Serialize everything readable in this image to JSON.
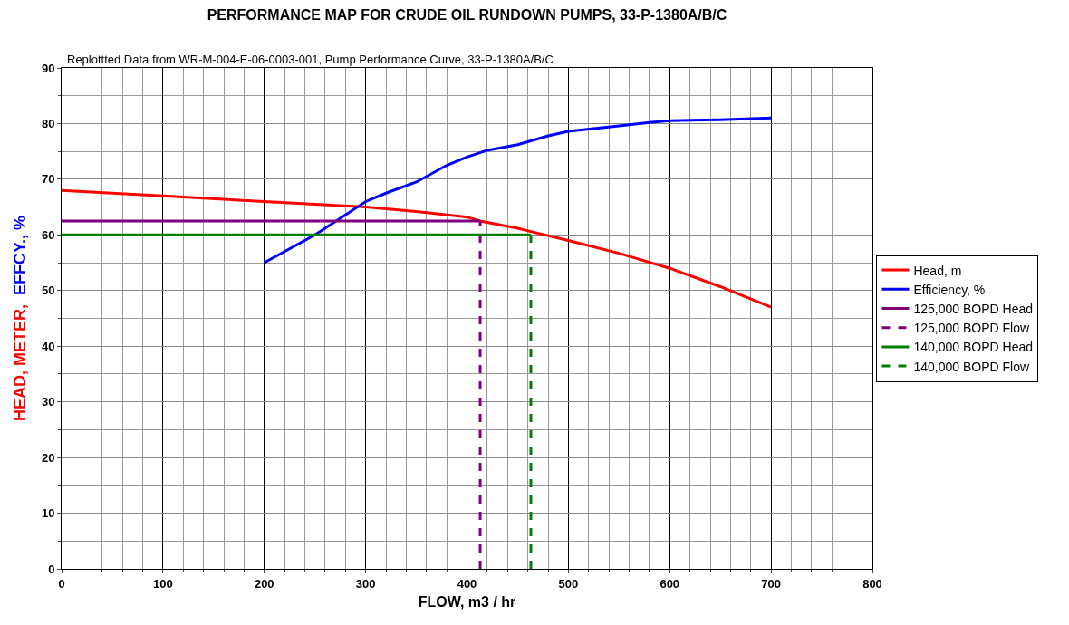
{
  "chart_data": {
    "type": "line",
    "title": "PERFORMANCE MAP FOR CRUDE OIL RUNDOWN PUMPS, 33-P-1380A/B/C",
    "subtitle": "Replottted Data from WR-M-004-E-06-0003-001, Pump Performance Curve, 33-P-1380A/B/C",
    "xlabel": "FLOW, m3 / hr",
    "ylabel": "HEAD, METER,  EFFCY., %",
    "series": [
      {
        "name": "Head, m",
        "color": "#ff0000",
        "x": [
          0,
          100,
          200,
          300,
          350,
          400,
          413,
          450,
          463,
          500,
          550,
          600,
          650,
          700
        ],
        "values": [
          68,
          67,
          66,
          65,
          64.2,
          63.2,
          62.5,
          61.2,
          60.6,
          59,
          56.7,
          54,
          50.7,
          47
        ]
      },
      {
        "name": "Efficiency, %",
        "color": "#0000ff",
        "x": [
          200,
          250,
          300,
          320,
          350,
          380,
          400,
          420,
          450,
          480,
          500,
          550,
          580,
          600,
          650,
          700
        ],
        "values": [
          55,
          60,
          66,
          67.5,
          69.5,
          72.5,
          74,
          75.2,
          76.2,
          77.8,
          78.6,
          79.6,
          80.2,
          80.5,
          80.7,
          81
        ]
      },
      {
        "name": "125,000 BOPD Head",
        "color": "#800080",
        "x": [
          0,
          413
        ],
        "values": [
          62.5,
          62.5
        ]
      },
      {
        "name": "125,000 BOPD Flow",
        "color": "#800080",
        "line_style": "dashed",
        "x": [
          413,
          413
        ],
        "values": [
          0,
          62.5
        ]
      },
      {
        "name": "140,000 BOPD Head",
        "color": "#008000",
        "x": [
          0,
          463
        ],
        "values": [
          60,
          60
        ]
      },
      {
        "name": "140,000 BOPD Flow",
        "color": "#008000",
        "line_style": "dashed",
        "x": [
          463,
          463
        ],
        "values": [
          0,
          60
        ]
      }
    ],
    "xlim": [
      0,
      800
    ],
    "xticks": [
      0,
      100,
      200,
      300,
      400,
      500,
      600,
      700,
      800
    ],
    "ylim": [
      0,
      90
    ],
    "yticks": [
      0,
      10,
      20,
      30,
      40,
      50,
      60,
      70,
      80,
      90
    ],
    "grid": true,
    "legend": "right",
    "marker": "none",
    "line_style": "solid"
  }
}
